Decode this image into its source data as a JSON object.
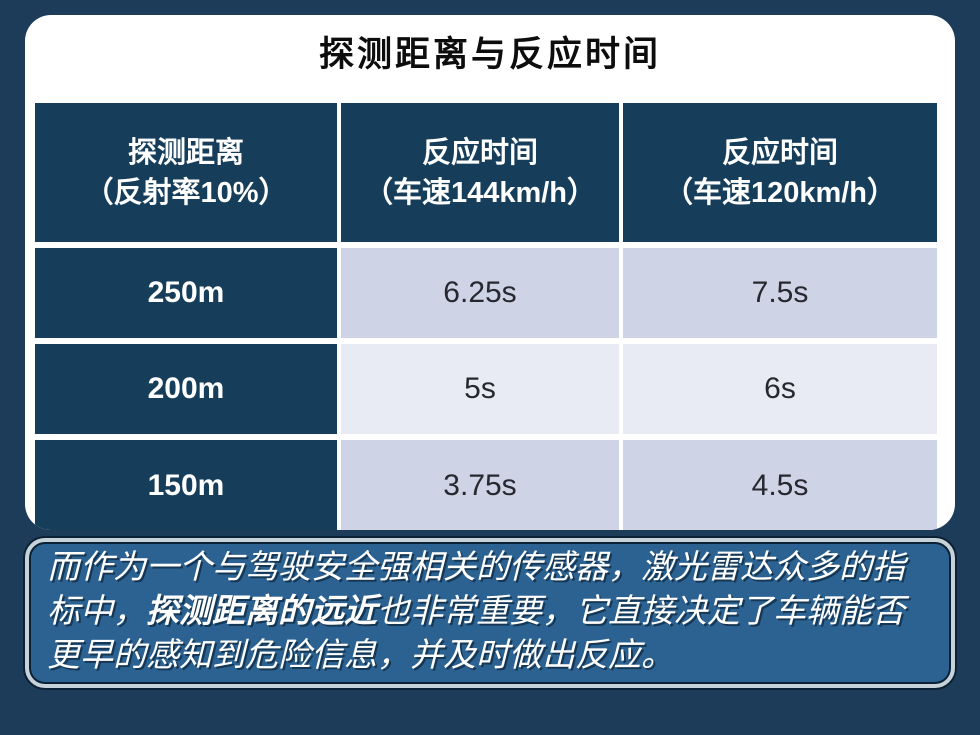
{
  "title": "探测距离与反应时间",
  "table": {
    "header": [
      {
        "line1": "探测距离",
        "line2": "（反射率10%）"
      },
      {
        "line1": "反应时间",
        "line2": "（车速144km/h）"
      },
      {
        "line1": "反应时间",
        "line2": "（车速120km/h）"
      }
    ],
    "rows": [
      {
        "distance": "250m",
        "time144": "6.25s",
        "time120": "7.5s"
      },
      {
        "distance": "200m",
        "time144": "5s",
        "time120": "6s"
      },
      {
        "distance": "150m",
        "time144": "3.75s",
        "time120": "4.5s"
      }
    ]
  },
  "note": {
    "part1": "而作为一个与驾驶安全强相关的传感器，激光雷达众多的指标中，",
    "bold": "探测距离的远近",
    "part2": "也非常重要，它直接决定了车辆能否更早的感知到危险信息，并及时做出反应。"
  },
  "chart_data": {
    "type": "table",
    "title": "探测距离与反应时间",
    "columns": [
      "探测距离（反射率10%）",
      "反应时间（车速144km/h）",
      "反应时间（车速120km/h）"
    ],
    "rows": [
      [
        "250m",
        "6.25s",
        "7.5s"
      ],
      [
        "200m",
        "5s",
        "6s"
      ],
      [
        "150m",
        "3.75s",
        "4.5s"
      ]
    ]
  },
  "colors": {
    "background": "#1d3c5a",
    "card": "#ffffff",
    "title_text": "#0d0d0d",
    "header_cell": "#163e5a",
    "header_text": "#ffffff",
    "row_shaded": "#ced4e5",
    "row_light": "#e8eaf4",
    "data_text": "#27272f",
    "note_panel": "#2c6291",
    "note_border": "#c6d2da",
    "note_outline": "#0c2134",
    "note_text": "#ffffff"
  }
}
